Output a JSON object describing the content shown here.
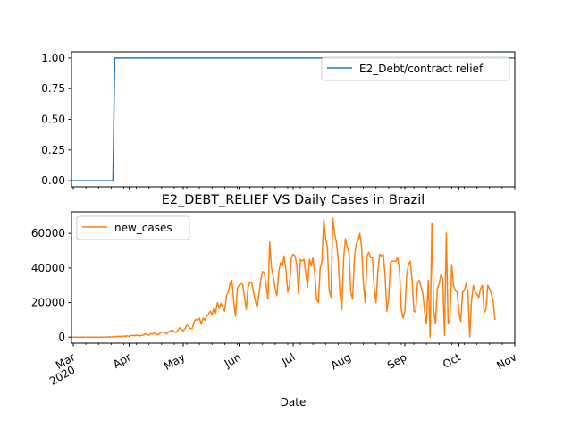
{
  "figure_title": "E2_DEBT_RELIEF VS Daily Cases in Brazil",
  "xlabel": "Date",
  "colors": {
    "policy": "#1f77b4",
    "cases": "#ff7f0e",
    "axis": "#000000",
    "legend_border": "#cccccc"
  },
  "chart_data": [
    {
      "type": "line",
      "name": "policy-panel",
      "title": "",
      "legend": "E2_Debt/contract relief",
      "legend_position": "upper right",
      "xlim": [
        "2020-02-29",
        "2020-11-01"
      ],
      "ylim": [
        -0.05,
        1.05
      ],
      "yticks": [
        0.0,
        0.25,
        0.5,
        0.75,
        1.0
      ],
      "ytick_labels": [
        "0.00",
        "0.25",
        "0.50",
        "0.75",
        "1.00"
      ],
      "grid": false,
      "x": [
        "2020-02-29",
        "2020-03-23",
        "2020-03-24",
        "2020-11-01"
      ],
      "y": [
        0,
        0,
        1,
        1
      ]
    },
    {
      "type": "line",
      "name": "cases-panel",
      "title": "E2_DEBT_RELIEF VS Daily Cases in Brazil",
      "legend": "new_cases",
      "legend_position": "upper left",
      "xlim": [
        "2020-02-29",
        "2020-11-01"
      ],
      "ylim": [
        -3500,
        72500
      ],
      "yticks": [
        0,
        20000,
        40000,
        60000
      ],
      "ytick_labels": [
        "0",
        "20000",
        "40000",
        "60000"
      ],
      "grid": false,
      "start_date": "2020-02-29",
      "y": [
        0,
        0,
        0,
        0,
        0,
        0,
        0,
        0,
        0,
        0,
        0,
        0,
        0,
        0,
        0,
        0,
        0,
        0,
        0,
        0,
        50,
        100,
        150,
        200,
        300,
        300,
        500,
        300,
        400,
        600,
        500,
        700,
        400,
        900,
        1000,
        800,
        1200,
        900,
        800,
        1100,
        1200,
        1900,
        1500,
        1100,
        2000,
        1800,
        2500,
        1600,
        1300,
        2200,
        3000,
        2800,
        2400,
        1900,
        3200,
        3500,
        4200,
        3100,
        2600,
        3900,
        5400,
        4500,
        3600,
        4900,
        6800,
        6200,
        4800,
        5000,
        8800,
        10300,
        9600,
        11000,
        7500,
        11000,
        9800,
        12000,
        13200,
        15000,
        13000,
        17000,
        14000,
        20000,
        16500,
        19500,
        17000,
        15000,
        24000,
        26000,
        31000,
        33000,
        21000,
        12000,
        28000,
        30000,
        31000,
        30500,
        23000,
        16000,
        29000,
        32000,
        31500,
        26000,
        21000,
        17000,
        25000,
        33000,
        38000,
        37000,
        30000,
        22000,
        55000,
        40000,
        35000,
        28000,
        24000,
        38000,
        43000,
        41000,
        47000,
        39000,
        26000,
        30000,
        46000,
        48000,
        47000,
        42000,
        25000,
        45000,
        44000,
        45000,
        37000,
        29000,
        45000,
        41000,
        46000,
        37000,
        22000,
        20000,
        40000,
        44000,
        68000,
        57000,
        52000,
        27000,
        23000,
        69000,
        60000,
        55000,
        45000,
        25000,
        16000,
        45000,
        57000,
        52000,
        49000,
        26000,
        22000,
        46000,
        54000,
        56000,
        60000,
        52000,
        31000,
        20000,
        47000,
        49000,
        46000,
        46000,
        28000,
        20000,
        38000,
        48000,
        47000,
        48000,
        36000,
        15000,
        22000,
        43000,
        44000,
        44000,
        44000,
        46000,
        39000,
        16000,
        11000,
        15000,
        36000,
        42000,
        44000,
        33000,
        15000,
        14500,
        31000,
        33000,
        29000,
        25000,
        14000,
        8000,
        33000,
        0,
        66000,
        15000,
        8000,
        28000,
        31000,
        36000,
        34000,
        1000,
        60000,
        8000,
        10000,
        42000,
        30000,
        27000,
        26000,
        15000,
        9000,
        26000,
        27000,
        31000,
        26000,
        200,
        21000,
        30000,
        26000,
        25000,
        23000,
        28000,
        30000,
        14000,
        16000,
        30000,
        28000,
        25000,
        21000,
        10000
      ]
    }
  ]
}
